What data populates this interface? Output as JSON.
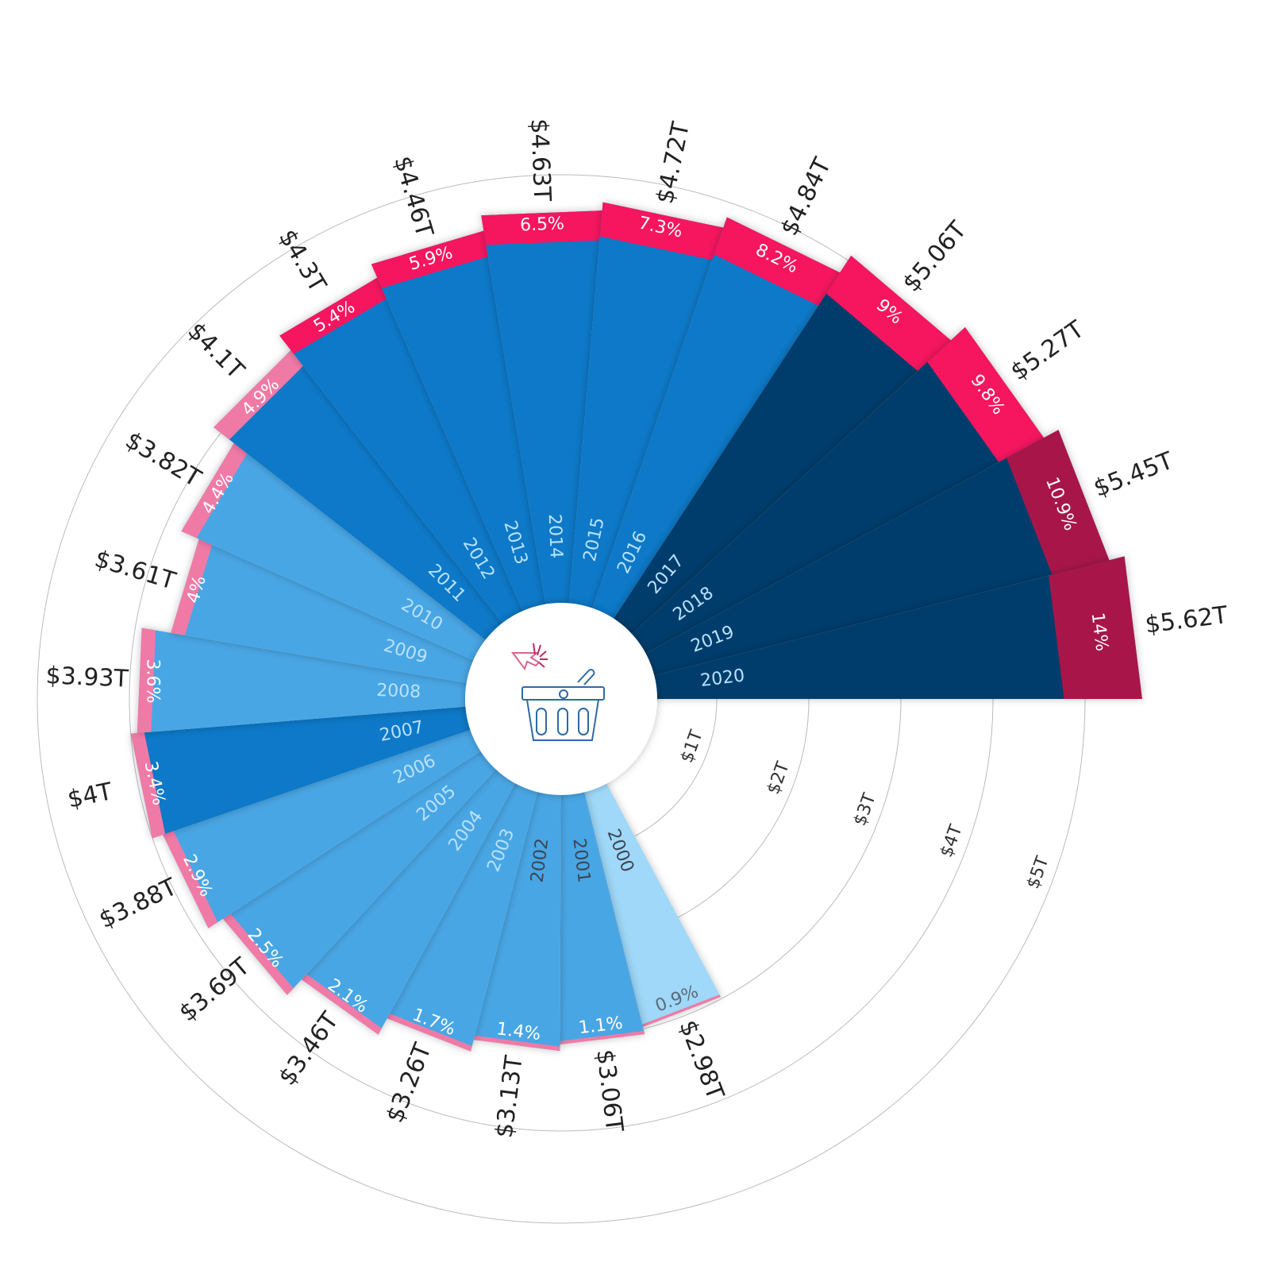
{
  "chart_data": {
    "type": "bar",
    "layout": "radial",
    "categories": [
      "2000",
      "2001",
      "2002",
      "2003",
      "2004",
      "2005",
      "2006",
      "2007",
      "2008",
      "2009",
      "2010",
      "2011",
      "2012",
      "2013",
      "2014",
      "2015",
      "2016",
      "2017",
      "2018",
      "2019",
      "2020"
    ],
    "values": [
      2.98,
      3.06,
      3.13,
      3.26,
      3.46,
      3.69,
      3.88,
      4.0,
      3.93,
      3.61,
      3.82,
      4.1,
      4.3,
      4.46,
      4.63,
      4.72,
      4.84,
      5.06,
      5.27,
      5.45,
      5.62
    ],
    "value_labels": [
      "$2.98T",
      "$3.06T",
      "$3.13T",
      "$3.26T",
      "$3.46T",
      "$3.69T",
      "$3.88T",
      "$4T",
      "$3.93T",
      "$3.61T",
      "$3.82T",
      "$4.1T",
      "$4.3T",
      "$4.46T",
      "$4.63T",
      "$4.72T",
      "$4.84T",
      "$5.06T",
      "$5.27T",
      "$5.45T",
      "$5.62T"
    ],
    "share_values": [
      0.9,
      1.1,
      1.4,
      1.7,
      2.1,
      2.5,
      2.9,
      3.4,
      3.6,
      4,
      4.4,
      4.9,
      5.4,
      5.9,
      6.5,
      7.3,
      8.2,
      9,
      9.8,
      10.9,
      14
    ],
    "share_labels": [
      "0.9%",
      "1.1%",
      "1.4%",
      "1.7%",
      "2.1%",
      "2.5%",
      "2.9%",
      "3.4%",
      "3.6%",
      "4%",
      "4.4%",
      "4.9%",
      "5.4%",
      "5.9%",
      "6.5%",
      "7.3%",
      "8.2%",
      "9%",
      "9.8%",
      "10.9%",
      "14%"
    ],
    "radial_axis": {
      "ticks": [
        1,
        2,
        3,
        4,
        5
      ],
      "tick_labels": [
        "$1T",
        "$2T",
        "$3T",
        "$4T",
        "$5T"
      ],
      "grid": true
    },
    "bar_colors": [
      "#9fd8f8",
      "#4aa6e4",
      "#4aa6e4",
      "#4aa6e4",
      "#4aa6e4",
      "#4aa6e4",
      "#4aa6e4",
      "#0d79c8",
      "#4aa6e4",
      "#4aa6e4",
      "#4aa6e4",
      "#0d79c8",
      "#0d79c8",
      "#0d79c8",
      "#0d79c8",
      "#0d79c8",
      "#0d79c8",
      "#053c6c",
      "#053c6c",
      "#053c6c",
      "#053c6c"
    ],
    "cap_colors": [
      "#f07aa6",
      "#f07aa6",
      "#f07aa6",
      "#f07aa6",
      "#f07aa6",
      "#f07aa6",
      "#f07aa6",
      "#f07aa6",
      "#f07aa6",
      "#f07aa6",
      "#f07aa6",
      "#f07aa6",
      "#f5145f",
      "#f5145f",
      "#f5145f",
      "#f5145f",
      "#f5145f",
      "#f5145f",
      "#f5145f",
      "#a8124a",
      "#a8124a"
    ],
    "center_icon": "shopping-basket-click-icon"
  }
}
